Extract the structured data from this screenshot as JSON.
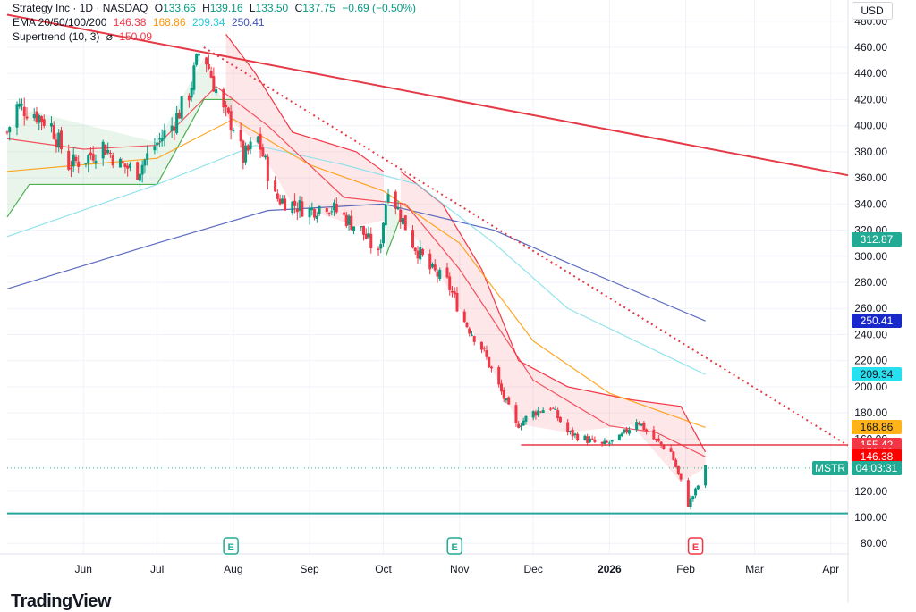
{
  "legend": {
    "symbol": "Strategy Inc · 1D · NASDAQ",
    "o_label": "O",
    "o_value": "133.66",
    "h_label": "H",
    "h_value": "139.16",
    "l_label": "L",
    "l_value": "133.50",
    "c_label": "C",
    "c_value": "137.75",
    "change": "−0.69 (−0.50%)",
    "ema_label": "EMA 20/50/100/200",
    "ema20": "146.38",
    "ema50": "168.86",
    "ema100": "209.34",
    "ema200": "250.41",
    "supertrend_label": "Supertrend (10, 3)",
    "supertrend_value": "150.09"
  },
  "currency": "USD",
  "brand": "TradingView",
  "symbol_tag": "MSTR",
  "countdown": "04:03:31",
  "colors": {
    "up": "#089981",
    "down": "#f23645",
    "ema20": "#f23645",
    "ema50": "#ff9800",
    "ema100": "#80deea",
    "ema200": "#3f51b5",
    "supertrend_up": "#4caf50",
    "supertrend_down": "#f23645",
    "trend": "#e53945",
    "support": "#26a69a"
  },
  "price_tags": [
    {
      "value": "312.87",
      "price": 312.87,
      "color": "#22ab94"
    },
    {
      "value": "250.41",
      "price": 250.41,
      "color": "#1928c8"
    },
    {
      "value": "209.34",
      "price": 209.34,
      "color": "#26e0f0"
    },
    {
      "value": "168.86",
      "price": 168.86,
      "color": "#ffb31a"
    },
    {
      "value": "155.42",
      "price": 155.42,
      "color": "#f23645"
    },
    {
      "value": "150.09",
      "price": 150.09,
      "color": "#f23645"
    },
    {
      "value": "146.38",
      "price": 146.38,
      "color": "#ff0000"
    }
  ],
  "chart_data": {
    "type": "candlestick",
    "title": "Strategy Inc · 1D · NASDAQ",
    "ylim": [
      70,
      490
    ],
    "y_ticks": [
      80,
      100,
      120,
      140,
      160,
      180,
      200,
      220,
      240,
      260,
      280,
      300,
      320,
      340,
      360,
      380,
      400,
      420,
      440,
      460,
      480
    ],
    "x_ticks": [
      "Jun",
      "Jul",
      "Aug",
      "Sep",
      "Oct",
      "Nov",
      "Dec",
      "2026",
      "Feb",
      "Mar",
      "Apr"
    ],
    "x_tick_dates": [
      "2025-06-01",
      "2025-07-01",
      "2025-08-01",
      "2025-09-01",
      "2025-10-01",
      "2025-11-01",
      "2025-12-01",
      "2026-01-01",
      "2026-02-01",
      "2026-03-01",
      "2026-04-01"
    ],
    "x_range": [
      "2025-05-01",
      "2026-04-08"
    ],
    "close_path": [
      {
        "date": "2025-05-01",
        "close": 395
      },
      {
        "date": "2025-05-05",
        "close": 415
      },
      {
        "date": "2025-05-12",
        "close": 410
      },
      {
        "date": "2025-05-19",
        "close": 400
      },
      {
        "date": "2025-05-26",
        "close": 370
      },
      {
        "date": "2025-06-02",
        "close": 375
      },
      {
        "date": "2025-06-09",
        "close": 385
      },
      {
        "date": "2025-06-16",
        "close": 370
      },
      {
        "date": "2025-06-23",
        "close": 365
      },
      {
        "date": "2025-06-30",
        "close": 385
      },
      {
        "date": "2025-07-07",
        "close": 400
      },
      {
        "date": "2025-07-14",
        "close": 425
      },
      {
        "date": "2025-07-18",
        "close": 455
      },
      {
        "date": "2025-07-21",
        "close": 450
      },
      {
        "date": "2025-07-28",
        "close": 410
      },
      {
        "date": "2025-08-01",
        "close": 400
      },
      {
        "date": "2025-08-05",
        "close": 375
      },
      {
        "date": "2025-08-11",
        "close": 390
      },
      {
        "date": "2025-08-18",
        "close": 345
      },
      {
        "date": "2025-08-25",
        "close": 340
      },
      {
        "date": "2025-09-01",
        "close": 335
      },
      {
        "date": "2025-09-08",
        "close": 340
      },
      {
        "date": "2025-09-15",
        "close": 330
      },
      {
        "date": "2025-09-22",
        "close": 320
      },
      {
        "date": "2025-09-29",
        "close": 300
      },
      {
        "date": "2025-10-03",
        "close": 355
      },
      {
        "date": "2025-10-06",
        "close": 340
      },
      {
        "date": "2025-10-13",
        "close": 310
      },
      {
        "date": "2025-10-20",
        "close": 290
      },
      {
        "date": "2025-10-27",
        "close": 280
      },
      {
        "date": "2025-11-03",
        "close": 250
      },
      {
        "date": "2025-11-10",
        "close": 230
      },
      {
        "date": "2025-11-17",
        "close": 200
      },
      {
        "date": "2025-11-24",
        "close": 170
      },
      {
        "date": "2025-12-01",
        "close": 180
      },
      {
        "date": "2025-12-08",
        "close": 185
      },
      {
        "date": "2025-12-15",
        "close": 165
      },
      {
        "date": "2025-12-22",
        "close": 160
      },
      {
        "date": "2025-12-29",
        "close": 155
      },
      {
        "date": "2026-01-05",
        "close": 160
      },
      {
        "date": "2026-01-12",
        "close": 175
      },
      {
        "date": "2026-01-19",
        "close": 160
      },
      {
        "date": "2026-01-26",
        "close": 150
      },
      {
        "date": "2026-02-02",
        "close": 110
      },
      {
        "date": "2026-02-05",
        "close": 120
      },
      {
        "date": "2026-02-09",
        "close": 137.75
      }
    ],
    "ema20": [
      {
        "date": "2025-05-01",
        "value": 390
      },
      {
        "date": "2025-06-01",
        "value": 382
      },
      {
        "date": "2025-07-01",
        "value": 385
      },
      {
        "date": "2025-07-25",
        "value": 430
      },
      {
        "date": "2025-08-15",
        "value": 400
      },
      {
        "date": "2025-09-15",
        "value": 345
      },
      {
        "date": "2025-10-10",
        "value": 340
      },
      {
        "date": "2025-11-01",
        "value": 290
      },
      {
        "date": "2025-12-01",
        "value": 205
      },
      {
        "date": "2026-01-01",
        "value": 170
      },
      {
        "date": "2026-01-20",
        "value": 165
      },
      {
        "date": "2026-02-09",
        "value": 146.38
      }
    ],
    "ema50": [
      {
        "date": "2025-05-01",
        "value": 365
      },
      {
        "date": "2025-07-01",
        "value": 375
      },
      {
        "date": "2025-08-01",
        "value": 405
      },
      {
        "date": "2025-09-01",
        "value": 370
      },
      {
        "date": "2025-10-01",
        "value": 350
      },
      {
        "date": "2025-11-01",
        "value": 310
      },
      {
        "date": "2025-12-01",
        "value": 235
      },
      {
        "date": "2026-01-01",
        "value": 195
      },
      {
        "date": "2026-02-09",
        "value": 168.86
      }
    ],
    "ema100": [
      {
        "date": "2025-05-01",
        "value": 315
      },
      {
        "date": "2025-07-01",
        "value": 355
      },
      {
        "date": "2025-08-10",
        "value": 385
      },
      {
        "date": "2025-09-15",
        "value": 370
      },
      {
        "date": "2025-10-15",
        "value": 355
      },
      {
        "date": "2025-11-15",
        "value": 310
      },
      {
        "date": "2025-12-15",
        "value": 260
      },
      {
        "date": "2026-02-09",
        "value": 209.34
      }
    ],
    "ema200": [
      {
        "date": "2025-05-01",
        "value": 275
      },
      {
        "date": "2025-07-01",
        "value": 310
      },
      {
        "date": "2025-08-15",
        "value": 335
      },
      {
        "date": "2025-10-01",
        "value": 340
      },
      {
        "date": "2025-11-15",
        "value": 320
      },
      {
        "date": "2025-12-15",
        "value": 295
      },
      {
        "date": "2026-02-09",
        "value": 250.41
      }
    ],
    "supertrend": [
      {
        "date": "2025-05-01",
        "value": 330,
        "trend": "up"
      },
      {
        "date": "2025-05-10",
        "value": 355,
        "trend": "up"
      },
      {
        "date": "2025-07-01",
        "value": 355,
        "trend": "up"
      },
      {
        "date": "2025-07-20",
        "value": 420,
        "trend": "up"
      },
      {
        "date": "2025-08-01",
        "value": 420,
        "trend": "up"
      },
      {
        "date": "2025-07-29",
        "value": 470,
        "trend": "down"
      },
      {
        "date": "2025-08-10",
        "value": 440,
        "trend": "down"
      },
      {
        "date": "2025-08-25",
        "value": 395,
        "trend": "down"
      },
      {
        "date": "2025-09-20",
        "value": 380,
        "trend": "down"
      },
      {
        "date": "2025-10-01",
        "value": 365,
        "trend": "down"
      },
      {
        "date": "2025-10-02",
        "value": 300,
        "trend": "up"
      },
      {
        "date": "2025-10-08",
        "value": 330,
        "trend": "up"
      },
      {
        "date": "2025-10-08",
        "value": 365,
        "trend": "down"
      },
      {
        "date": "2025-10-25",
        "value": 340,
        "trend": "down"
      },
      {
        "date": "2025-11-10",
        "value": 290,
        "trend": "down"
      },
      {
        "date": "2025-11-25",
        "value": 220,
        "trend": "down"
      },
      {
        "date": "2025-12-15",
        "value": 200,
        "trend": "down"
      },
      {
        "date": "2026-01-10",
        "value": 190,
        "trend": "down"
      },
      {
        "date": "2026-01-30",
        "value": 185,
        "trend": "down"
      },
      {
        "date": "2026-02-09",
        "value": 150.09,
        "trend": "down"
      }
    ],
    "trendlines": [
      {
        "name": "upper",
        "from": {
          "date": "2025-05-01",
          "value": 485
        },
        "to": {
          "date": "2026-04-08",
          "value": 362
        },
        "style": "solid"
      },
      {
        "name": "dotted",
        "from": {
          "date": "2025-07-20",
          "value": 460
        },
        "to": {
          "date": "2026-04-08",
          "value": 155
        },
        "style": "dotted"
      },
      {
        "name": "support-upper",
        "from": {
          "date": "2025-11-26",
          "value": 155.42
        },
        "to": {
          "date": "2026-04-08",
          "value": 155.42
        },
        "style": "solid"
      },
      {
        "name": "support-lower",
        "from": {
          "date": "2025-05-01",
          "value": 103
        },
        "to": {
          "date": "2026-04-08",
          "value": 103
        },
        "style": "solid"
      }
    ],
    "earnings_markers": [
      {
        "date": "2025-07-31",
        "label": "E",
        "type": "past"
      },
      {
        "date": "2025-10-30",
        "label": "E",
        "type": "past"
      },
      {
        "date": "2026-02-05",
        "label": "E",
        "type": "upcoming"
      }
    ],
    "last_price": 137.75,
    "legend": [
      "EMA 20",
      "EMA 50",
      "EMA 100",
      "EMA 200",
      "Supertrend"
    ]
  }
}
